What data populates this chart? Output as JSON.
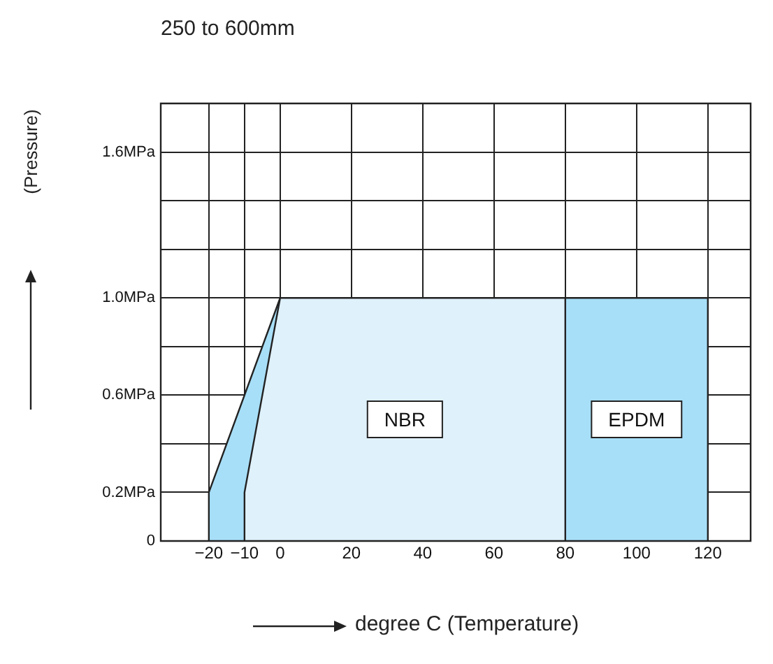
{
  "chart_data": {
    "type": "area",
    "title": "250 to 600mm",
    "xlabel": "degree C (Temperature)",
    "ylabel": "(Pressure)",
    "series": [
      {
        "name": "EPDM",
        "color": "#a8dff8",
        "x": [
          -20,
          -20,
          0,
          120,
          120
        ],
        "values": [
          0,
          0.2,
          1.0,
          1.0,
          0
        ]
      },
      {
        "name": "NBR",
        "color": "#dff1fb",
        "x": [
          -10,
          -10,
          0,
          80,
          80
        ],
        "values": [
          0,
          0.2,
          1.0,
          1.0,
          0
        ]
      }
    ],
    "xlim": [
      -33.5,
      132
    ],
    "ylim": [
      0,
      1.8
    ],
    "xticks": [
      {
        "value": -20,
        "label": "−20"
      },
      {
        "value": -10,
        "label": "−10"
      },
      0,
      20,
      40,
      60,
      80,
      100,
      120
    ],
    "yticks": [
      0,
      {
        "value": 0.2,
        "label": "0.2MPa"
      },
      {
        "value": 0.4,
        "label": null
      },
      {
        "value": 0.6,
        "label": "0.6MPa"
      },
      {
        "value": 0.8,
        "label": null
      },
      {
        "value": 1.0,
        "label": "1.0MPa"
      },
      {
        "value": 1.2,
        "label": null
      },
      {
        "value": 1.4,
        "label": null
      },
      {
        "value": 1.6,
        "label": "1.6MPa"
      }
    ],
    "grid": true
  }
}
